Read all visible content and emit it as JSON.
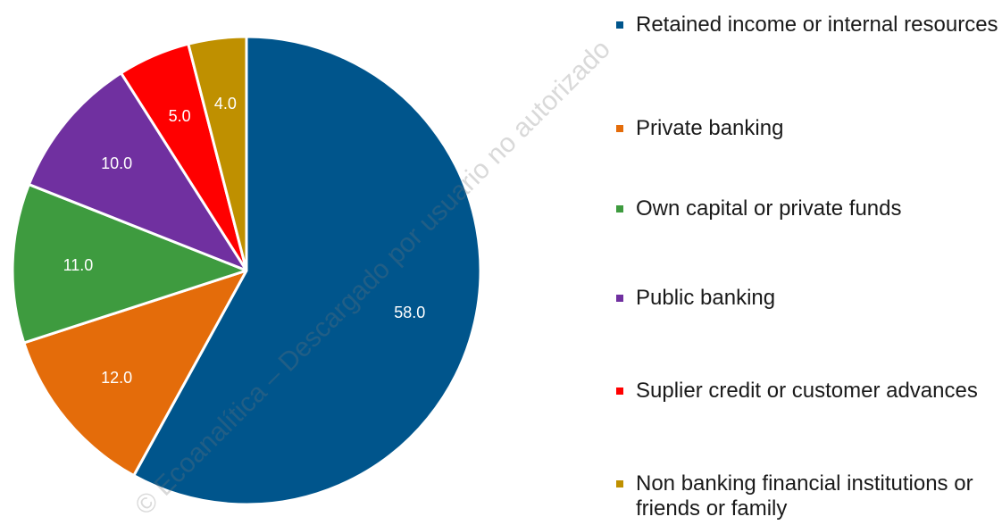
{
  "chart_data": {
    "type": "pie",
    "title": "",
    "start_angle_deg": 0,
    "direction": "clockwise",
    "slices": [
      {
        "label": "Retained income or internal resources",
        "value": 58.0,
        "display": "58.0",
        "color": "#00558C"
      },
      {
        "label": "Private banking",
        "value": 12.0,
        "display": "12.0",
        "color": "#E46C0A"
      },
      {
        "label": "Own capital or private funds",
        "value": 11.0,
        "display": "11.0",
        "color": "#3E9B3F"
      },
      {
        "label": "Public banking",
        "value": 10.0,
        "display": "10.0",
        "color": "#7030A0"
      },
      {
        "label": "Suplier credit or customer advances",
        "value": 5.0,
        "display": "5.0",
        "color": "#FF0000"
      },
      {
        "label": "Non banking financial institutions or friends or family",
        "value": 4.0,
        "display": "4.0",
        "color": "#BF9000"
      }
    ],
    "legend_placement": "right"
  },
  "watermark": {
    "text": "© Ecoanalítica – Descargado por usuario no autorizado"
  }
}
